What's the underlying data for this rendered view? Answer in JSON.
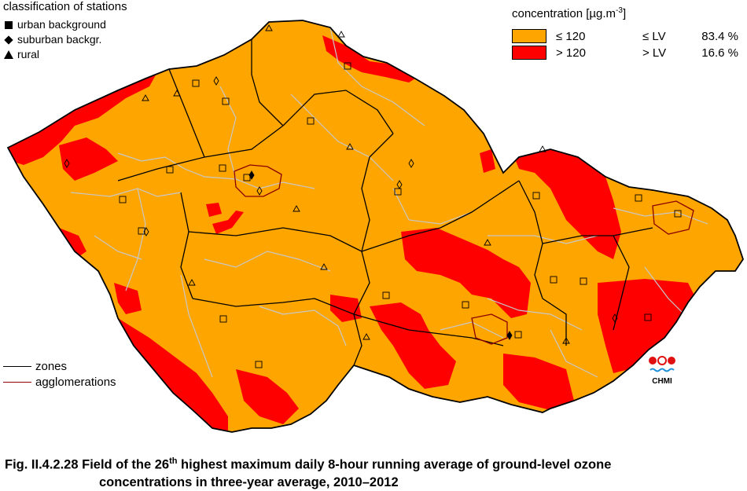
{
  "stations_legend": {
    "title": "classification of stations",
    "items": [
      {
        "symbol": "square",
        "label": "urban background"
      },
      {
        "symbol": "diamond",
        "label": "suburban backgr."
      },
      {
        "symbol": "triangle",
        "label": "rural"
      }
    ]
  },
  "concentration_legend": {
    "title_prefix": "concentration [µg.m",
    "title_exp": "-3",
    "title_suffix": "]",
    "rows": [
      {
        "threshold": "≤ 120",
        "lv": "≤  LV",
        "percent": "83.4 %",
        "color": "#FFA500"
      },
      {
        "threshold": "> 120",
        "lv": ">  LV",
        "percent": "16.6 %",
        "color": "#FF0000"
      }
    ]
  },
  "boundary_legend": {
    "zones": {
      "label": "zones",
      "color": "#000000"
    },
    "agglomerations": {
      "label": "agglomerations",
      "color": "#8B0000"
    }
  },
  "logo": {
    "text": "CHMI"
  },
  "caption": {
    "prefix": "Fig. II.4.2.28  Field of the 26",
    "sup": "th",
    "rest": " highest maximum daily 8-hour running average of ground-level ozone",
    "line2": "concentrations in three-year average, 2010–2012"
  },
  "colors": {
    "below_lv": "#FFA500",
    "above_lv": "#FF0000",
    "district_lines": "#C8C8C8",
    "zone_lines": "#000000",
    "agglomeration_lines": "#8B0000"
  }
}
